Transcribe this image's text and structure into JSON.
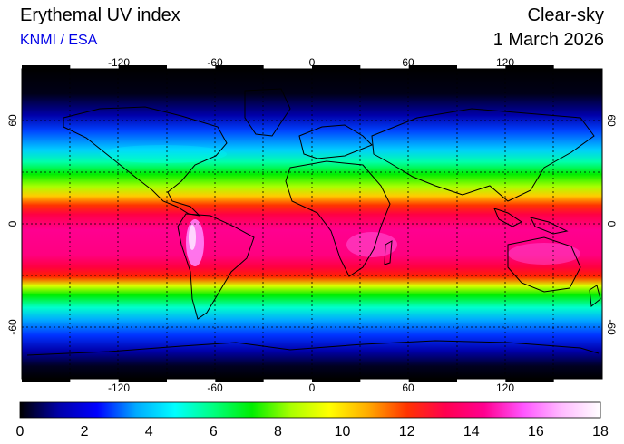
{
  "header": {
    "title": "Erythemal UV index",
    "credit": "KNMI / ESA",
    "product": "Clear-sky",
    "date": "1 March 2026"
  },
  "map": {
    "projection": "equirectangular",
    "lon_ticks": [
      "-120",
      "-60",
      "0",
      "60",
      "120"
    ],
    "lat_ticks": [
      "60",
      "0",
      "-60"
    ],
    "grid": true
  },
  "colorbar": {
    "labels": [
      "0",
      "2",
      "4",
      "6",
      "8",
      "10",
      "12",
      "14",
      "16",
      "18"
    ],
    "colors": [
      "#000000",
      "#0000aa",
      "#0000ff",
      "#00aaff",
      "#00ffff",
      "#00ff80",
      "#00ee00",
      "#aaff00",
      "#ffff00",
      "#ffaa00",
      "#ff3300",
      "#ff0050",
      "#ff0090",
      "#ff55ff",
      "#ffbbff",
      "#ffffff"
    ]
  }
}
